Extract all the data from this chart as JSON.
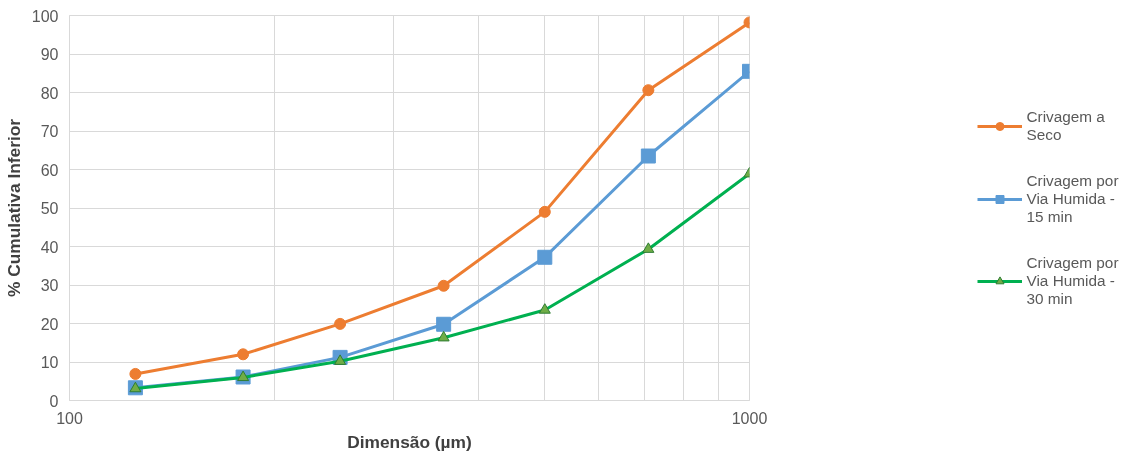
{
  "chart_data": {
    "type": "line",
    "xlabel": "Dimensão (µm)",
    "ylabel": "% Cumulativa Inferior",
    "x": [
      125,
      180,
      250,
      355,
      500,
      710,
      1000
    ],
    "series": [
      {
        "name": "Crivagem a Seco",
        "color": "#ed7d31",
        "marker": "circle",
        "values": [
          6.9,
          12,
          19.9,
          29.8,
          49,
          80.6,
          98.2
        ]
      },
      {
        "name": "Crivagem por Via Humida - 15 min",
        "color": "#5b9bd5",
        "marker": "square",
        "values": [
          3.3,
          6.1,
          11.2,
          19.8,
          37.2,
          63.5,
          85.5
        ]
      },
      {
        "name": "Crivagem por Via Humida - 30 min",
        "color": "#00b050",
        "marker": "triangle",
        "values": [
          3.1,
          6,
          10.2,
          16.3,
          23.5,
          39.3,
          58.9
        ]
      }
    ],
    "log": "x",
    "xlim": [
      100,
      1000
    ],
    "ylim": [
      0,
      100
    ],
    "xticks": [
      100,
      {
        "value": 200,
        "label": null
      },
      {
        "value": 300,
        "label": null
      },
      {
        "value": 400,
        "label": null
      },
      {
        "value": 500,
        "label": null
      },
      {
        "value": 600,
        "label": null
      },
      {
        "value": 700,
        "label": null
      },
      {
        "value": 800,
        "label": null
      },
      {
        "value": 900,
        "label": null
      },
      1000
    ],
    "yticks": [
      0,
      10,
      20,
      30,
      40,
      50,
      60,
      70,
      80,
      90,
      100
    ],
    "grid": true,
    "legend": "right",
    "line_style": "solid"
  }
}
